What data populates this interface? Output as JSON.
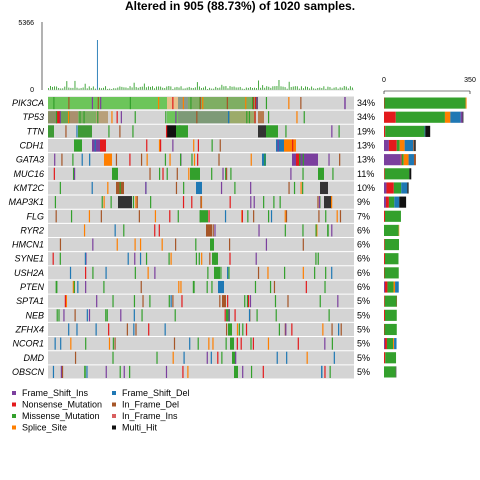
{
  "chart_data": {
    "type": "heatmap",
    "title": "Altered in 905 (88.73%) of 1020 samples.",
    "tmb_axis": {
      "max_label": "5366",
      "min_label": "0",
      "max": 5366
    },
    "bar_axis": {
      "min_label": "0",
      "max_label": "350",
      "max": 350
    },
    "genes": [
      {
        "name": "PIK3CA",
        "pct": "34%",
        "counts": {
          "Missense_Mutation": 330,
          "Nonsense_Mutation": 2,
          "Splice_Site": 4,
          "Multi_Hit": 0,
          "Frame_Shift_Ins": 0,
          "Frame_Shift_Del": 0
        }
      },
      {
        "name": "TP53",
        "pct": "34%",
        "counts": {
          "Missense_Mutation": 200,
          "Nonsense_Mutation": 48,
          "Frame_Shift_Del": 42,
          "Splice_Site": 22,
          "Frame_Shift_Ins": 8,
          "Multi_Hit": 3
        }
      },
      {
        "name": "TTN",
        "pct": "19%",
        "counts": {
          "Missense_Mutation": 160,
          "Multi_Hit": 20,
          "Nonsense_Mutation": 5,
          "Frame_Shift_Del": 3
        }
      },
      {
        "name": "CDH1",
        "pct": "13%",
        "counts": {
          "Frame_Shift_Del": 35,
          "Nonsense_Mutation": 32,
          "Frame_Shift_Ins": 20,
          "Splice_Site": 20,
          "Missense_Mutation": 12,
          "Multi_Hit": 6,
          "In_Frame_Del": 4
        }
      },
      {
        "name": "GATA3",
        "pct": "13%",
        "counts": {
          "Frame_Shift_Ins": 68,
          "Frame_Shift_Del": 22,
          "Splice_Site": 20,
          "In_Frame_Del": 8,
          "Missense_Mutation": 8,
          "Nonsense_Mutation": 4
        }
      },
      {
        "name": "MUC16",
        "pct": "11%",
        "counts": {
          "Missense_Mutation": 100,
          "Multi_Hit": 8,
          "Nonsense_Mutation": 3
        }
      },
      {
        "name": "KMT2C",
        "pct": "10%",
        "counts": {
          "Nonsense_Mutation": 30,
          "Frame_Shift_Del": 25,
          "Missense_Mutation": 30,
          "Frame_Shift_Ins": 10,
          "Multi_Hit": 5
        }
      },
      {
        "name": "MAP3K1",
        "pct": "9%",
        "counts": {
          "Frame_Shift_Del": 20,
          "Nonsense_Mutation": 12,
          "Missense_Mutation": 22,
          "Frame_Shift_Ins": 8,
          "Multi_Hit": 28
        }
      },
      {
        "name": "FLG",
        "pct": "7%",
        "counts": {
          "Missense_Mutation": 65,
          "Nonsense_Mutation": 4
        }
      },
      {
        "name": "RYR2",
        "pct": "6%",
        "counts": {
          "Missense_Mutation": 60,
          "Splice_Site": 2
        }
      },
      {
        "name": "HMCN1",
        "pct": "6%",
        "counts": {
          "Missense_Mutation": 58,
          "Nonsense_Mutation": 3
        }
      },
      {
        "name": "SYNE1",
        "pct": "6%",
        "counts": {
          "Missense_Mutation": 55,
          "Nonsense_Mutation": 4
        }
      },
      {
        "name": "USH2A",
        "pct": "6%",
        "counts": {
          "Missense_Mutation": 58,
          "Nonsense_Mutation": 2
        }
      },
      {
        "name": "PTEN",
        "pct": "6%",
        "counts": {
          "Missense_Mutation": 25,
          "Frame_Shift_Del": 15,
          "Nonsense_Mutation": 10,
          "Splice_Site": 6,
          "Frame_Shift_Ins": 4
        }
      },
      {
        "name": "SPTA1",
        "pct": "5%",
        "counts": {
          "Missense_Mutation": 48,
          "Nonsense_Mutation": 3,
          "In_Frame_Del": 2
        }
      },
      {
        "name": "NEB",
        "pct": "5%",
        "counts": {
          "Missense_Mutation": 48,
          "Nonsense_Mutation": 4
        }
      },
      {
        "name": "ZFHX4",
        "pct": "5%",
        "counts": {
          "Missense_Mutation": 50,
          "Nonsense_Mutation": 2
        }
      },
      {
        "name": "NCOR1",
        "pct": "5%",
        "counts": {
          "Missense_Mutation": 25,
          "Nonsense_Mutation": 8,
          "Frame_Shift_Del": 10,
          "Frame_Shift_Ins": 4,
          "Splice_Site": 4
        }
      },
      {
        "name": "DMD",
        "pct": "5%",
        "counts": {
          "Missense_Mutation": 44,
          "Nonsense_Mutation": 5
        }
      },
      {
        "name": "OBSCN",
        "pct": "5%",
        "counts": {
          "Missense_Mutation": 48,
          "Multi_Hit": 2
        }
      }
    ],
    "legend": [
      {
        "label": "Frame_Shift_Ins",
        "color": "#7b3f9e"
      },
      {
        "label": "Frame_Shift_Del",
        "color": "#1f78b4"
      },
      {
        "label": "Nonsense_Mutation",
        "color": "#e31a1c"
      },
      {
        "label": "In_Frame_Del",
        "color": "#a65628"
      },
      {
        "label": "Missense_Mutation",
        "color": "#33a02c"
      },
      {
        "label": "In_Frame_Ins",
        "color": "#d95f5f"
      },
      {
        "label": "Splice_Site",
        "color": "#ff7f00"
      },
      {
        "label": "Multi_Hit",
        "color": "#111111"
      }
    ],
    "colors": {
      "Missense_Mutation": "#33a02c",
      "Nonsense_Mutation": "#e31a1c",
      "Frame_Shift_Del": "#1f78b4",
      "Frame_Shift_Ins": "#7b3f9e",
      "Splice_Site": "#ff7f00",
      "In_Frame_Del": "#a65628",
      "In_Frame_Ins": "#d95f5f",
      "Multi_Hit": "#111111"
    }
  }
}
